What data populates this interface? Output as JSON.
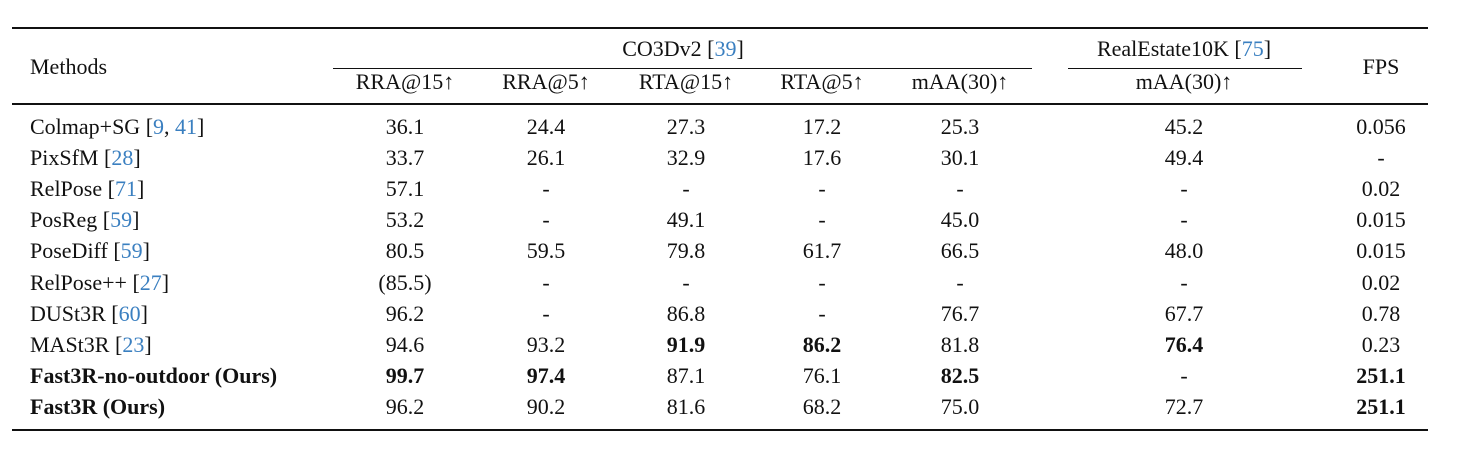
{
  "table": {
    "header": {
      "methods": "Methods",
      "groups": [
        {
          "name": "CO3Dv2",
          "refs": [
            "39"
          ]
        },
        {
          "name": "RealEstate10K",
          "refs": [
            "75"
          ]
        }
      ],
      "fps": "FPS",
      "columns": [
        "RRA@15↑",
        "RRA@5↑",
        "RTA@15↑",
        "RTA@5↑",
        "mAA(30)↑",
        "mAA(30)↑"
      ]
    },
    "rows": [
      {
        "method": "Colmap+SG",
        "refs": [
          "9",
          "41"
        ],
        "values": [
          "36.1",
          "24.4",
          "27.3",
          "17.2",
          "25.3",
          "45.2",
          "0.056"
        ],
        "bold": []
      },
      {
        "method": "PixSfM",
        "refs": [
          "28"
        ],
        "values": [
          "33.7",
          "26.1",
          "32.9",
          "17.6",
          "30.1",
          "49.4",
          "-"
        ],
        "bold": []
      },
      {
        "method": "RelPose",
        "refs": [
          "71"
        ],
        "values": [
          "57.1",
          "-",
          "-",
          "-",
          "-",
          "-",
          "0.02"
        ],
        "bold": []
      },
      {
        "method": "PosReg",
        "refs": [
          "59"
        ],
        "values": [
          "53.2",
          "-",
          "49.1",
          "-",
          "45.0",
          "-",
          "0.015"
        ],
        "bold": []
      },
      {
        "method": "PoseDiff",
        "refs": [
          "59"
        ],
        "values": [
          "80.5",
          "59.5",
          "79.8",
          "61.7",
          "66.5",
          "48.0",
          "0.015"
        ],
        "bold": []
      },
      {
        "method": "RelPose++",
        "refs": [
          "27"
        ],
        "values": [
          "(85.5)",
          "-",
          "-",
          "-",
          "-",
          "-",
          "0.02"
        ],
        "bold": []
      },
      {
        "method": "DUSt3R",
        "refs": [
          "60"
        ],
        "values": [
          "96.2",
          "-",
          "86.8",
          "-",
          "76.7",
          "67.7",
          "0.78"
        ],
        "bold": []
      },
      {
        "method": "MASt3R",
        "refs": [
          "23"
        ],
        "values": [
          "94.6",
          "93.2",
          "91.9",
          "86.2",
          "81.8",
          "76.4",
          "0.23"
        ],
        "bold": [
          2,
          3,
          5
        ]
      },
      {
        "method": "Fast3R-no-outdoor (Ours)",
        "refs": [],
        "method_bold": true,
        "values": [
          "99.7",
          "97.4",
          "87.1",
          "76.1",
          "82.5",
          "-",
          "251.1"
        ],
        "bold": [
          0,
          1,
          4,
          6
        ]
      },
      {
        "method": "Fast3R (Ours)",
        "refs": [],
        "method_bold": true,
        "values": [
          "96.2",
          "90.2",
          "81.6",
          "68.2",
          "75.0",
          "72.7",
          "251.1"
        ],
        "bold": [
          6
        ]
      }
    ]
  }
}
